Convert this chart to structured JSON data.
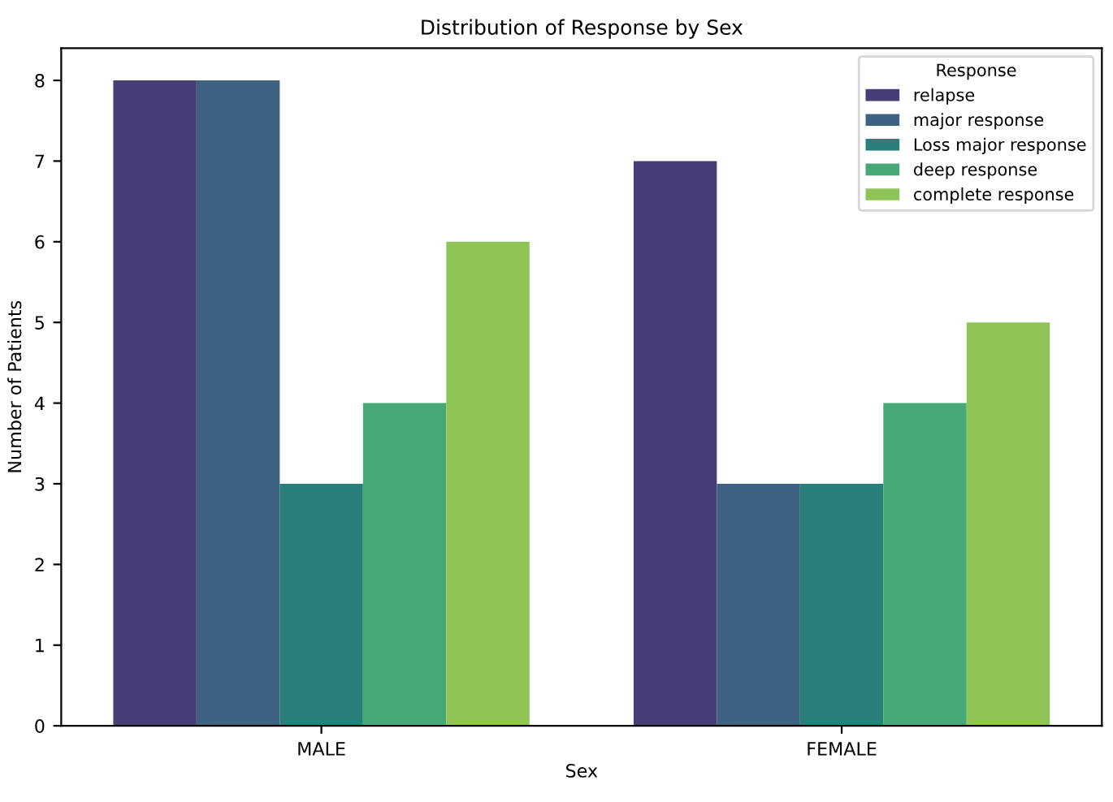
{
  "chart_data": {
    "type": "bar",
    "title": "Distribution of Response by Sex",
    "xlabel": "Sex",
    "ylabel": "Number of Patients",
    "legend_title": "Response",
    "categories": [
      "MALE",
      "FEMALE"
    ],
    "series": [
      {
        "name": "relapse",
        "color": "#493d77",
        "values": [
          8,
          7
        ]
      },
      {
        "name": "major response",
        "color": "#3e6282",
        "values": [
          8,
          3
        ]
      },
      {
        "name": "Loss major response",
        "color": "#2a7f7a",
        "values": [
          3,
          3
        ]
      },
      {
        "name": "deep response",
        "color": "#45a876",
        "values": [
          4,
          4
        ]
      },
      {
        "name": "complete response",
        "color": "#8fc556",
        "values": [
          6,
          5
        ]
      }
    ],
    "ylim": [
      0,
      8.4
    ],
    "yticks": [
      0,
      1,
      2,
      3,
      4,
      5,
      6,
      7,
      8
    ],
    "grid": false,
    "legend": "top right"
  }
}
